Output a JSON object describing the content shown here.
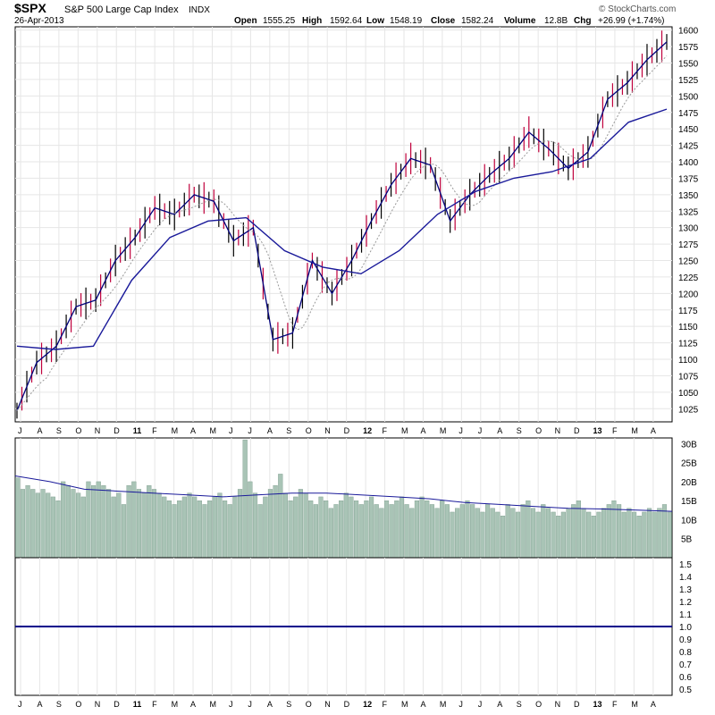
{
  "header": {
    "symbol": "$SPX",
    "name": "S&P 500 Large Cap Index",
    "exchange": "INDX",
    "date": "26-Apr-2013",
    "open_label": "Open",
    "open": "1555.25",
    "high_label": "High",
    "high": "1592.64",
    "low_label": "Low",
    "low": "1548.19",
    "close_label": "Close",
    "close": "1582.24",
    "volume_label": "Volume",
    "volume": "12.8B",
    "chg_label": "Chg",
    "chg": "+26.99 (+1.74%)",
    "watermark": "© StockCharts.com"
  },
  "colors": {
    "up_bar": "#000000",
    "down_bar": "#c0003c",
    "close_line": "#00007a",
    "ma_long": "#1a1a9a",
    "ma_short": "#999999",
    "volume_fill": "#a9c4b6",
    "volume_stroke": "#7a9a8a",
    "volume_ma": "#1a1a9a",
    "ratio_line": "#00008b",
    "grid": "#e6e6e6"
  },
  "chart_data": [
    {
      "type": "line",
      "panel": "price",
      "y_ticks": [
        1025,
        1050,
        1075,
        1100,
        1125,
        1150,
        1175,
        1200,
        1225,
        1250,
        1275,
        1300,
        1325,
        1350,
        1375,
        1400,
        1425,
        1450,
        1475,
        1500,
        1525,
        1550,
        1575,
        1600
      ],
      "ylim": [
        1005,
        1605
      ],
      "x_labels": [
        "J",
        "A",
        "S",
        "O",
        "N",
        "D",
        "11",
        "F",
        "M",
        "A",
        "M",
        "J",
        "J",
        "A",
        "S",
        "O",
        "N",
        "D",
        "12",
        "F",
        "M",
        "A",
        "M",
        "J",
        "J",
        "A",
        "S",
        "O",
        "N",
        "D",
        "13",
        "F",
        "M",
        "A"
      ],
      "grid": true,
      "series": [
        {
          "role": "weekly_close",
          "x": [
            "2010-07",
            "2010-08",
            "2010-09",
            "2010-10",
            "2010-11",
            "2010-12",
            "2011-01",
            "2011-02",
            "2011-03",
            "2011-04",
            "2011-05",
            "2011-06",
            "2011-07",
            "2011-08",
            "2011-09",
            "2011-10",
            "2011-11",
            "2011-12",
            "2012-01",
            "2012-02",
            "2012-03",
            "2012-04",
            "2012-05",
            "2012-06",
            "2012-07",
            "2012-08",
            "2012-09",
            "2012-10",
            "2012-11",
            "2012-12",
            "2013-01",
            "2013-02",
            "2013-03",
            "2013-04"
          ],
          "values": [
            1022,
            1095,
            1120,
            1180,
            1190,
            1250,
            1285,
            1330,
            1320,
            1350,
            1340,
            1280,
            1300,
            1130,
            1140,
            1250,
            1200,
            1250,
            1310,
            1365,
            1405,
            1395,
            1310,
            1350,
            1380,
            1405,
            1445,
            1420,
            1390,
            1415,
            1495,
            1520,
            1555,
            1582
          ]
        },
        {
          "role": "ma_long",
          "x": [
            "2010-07",
            "2010-09",
            "2010-11",
            "2011-01",
            "2011-03",
            "2011-05",
            "2011-07",
            "2011-09",
            "2011-11",
            "2012-01",
            "2012-03",
            "2012-05",
            "2012-07",
            "2012-09",
            "2012-11",
            "2013-01",
            "2013-03",
            "2013-04"
          ],
          "values": [
            1120,
            1115,
            1120,
            1220,
            1285,
            1310,
            1315,
            1265,
            1240,
            1230,
            1265,
            1320,
            1355,
            1375,
            1385,
            1405,
            1460,
            1480
          ]
        }
      ]
    },
    {
      "type": "bar",
      "panel": "volume",
      "y_ticks_labels": [
        "5B",
        "10B",
        "15B",
        "20B",
        "25B",
        "30B"
      ],
      "y_ticks": [
        5,
        10,
        15,
        20,
        25,
        30
      ],
      "ylim": [
        0,
        31.5
      ],
      "values_billion": [
        21,
        18,
        19,
        18,
        17,
        18,
        17,
        16,
        15,
        20,
        19,
        18,
        17,
        16,
        20,
        19,
        20,
        19,
        18,
        16,
        17,
        14,
        19,
        20,
        18,
        17,
        19,
        18,
        17,
        16,
        15,
        14,
        15,
        16,
        17,
        16,
        15,
        14,
        15,
        16,
        17,
        15,
        14,
        16,
        18,
        31,
        20,
        17,
        14,
        16,
        18,
        19,
        22,
        17,
        15,
        16,
        18,
        17,
        15,
        14,
        16,
        15,
        13,
        14,
        15,
        17,
        16,
        15,
        14,
        15,
        16,
        14,
        13,
        15,
        14,
        15,
        16,
        14,
        13,
        15,
        16,
        15,
        14,
        13,
        15,
        14,
        12,
        13,
        14,
        15,
        14,
        13,
        12,
        14,
        13,
        12,
        11,
        14,
        13,
        12,
        14,
        15,
        13,
        12,
        14,
        13,
        12,
        11,
        12,
        13,
        14,
        15,
        13,
        12,
        11,
        12,
        13,
        14,
        15,
        14,
        12,
        13,
        12,
        11,
        12,
        13,
        12,
        13,
        14,
        12
      ],
      "ma_values_billion": [
        21.5,
        20,
        18,
        17.5,
        17,
        16.5,
        16,
        16.5,
        17,
        17,
        16.5,
        16,
        15.5,
        14.5,
        14,
        13.5,
        13,
        12.8,
        12.5,
        12.2
      ]
    },
    {
      "type": "line",
      "panel": "ratio",
      "y_ticks": [
        0.5,
        0.6,
        0.7,
        0.8,
        0.9,
        1.0,
        1.1,
        1.2,
        1.3,
        1.4,
        1.5
      ],
      "y_tick_labels": [
        "0.5",
        "0.6",
        "0.7",
        "0.8",
        "0.9",
        "1.0",
        "1.1",
        "1.2",
        "1.3",
        "1.4",
        "1.5"
      ],
      "ylim": [
        0.45,
        1.55
      ],
      "values": [
        1.0,
        1.0
      ]
    }
  ]
}
